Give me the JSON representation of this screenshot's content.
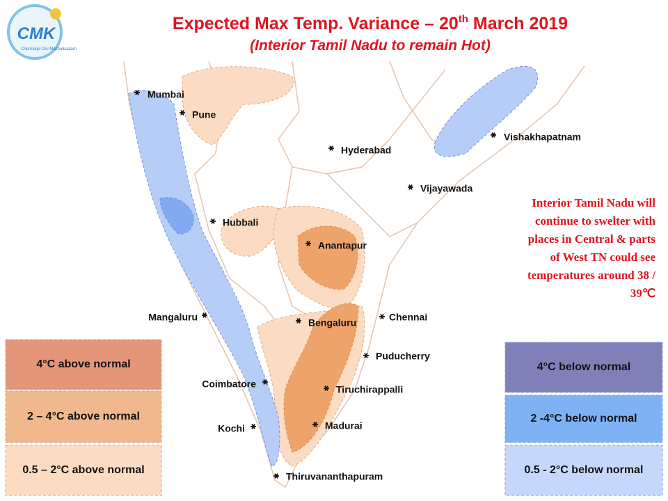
{
  "logo": {
    "title": "CMK",
    "tagline": "Chennaiyil Oru Mazhaikaalam"
  },
  "header": {
    "title": "Expected Max Temp. Variance – 20",
    "title_sup": "th",
    "title_end": " March 2019",
    "subtitle": "(Interior Tamil Nadu to remain Hot)"
  },
  "cities": [
    "Mumbai",
    "Pune",
    "Hyderabad",
    "Vishakhapatnam",
    "Vijayawada",
    "Hubbali",
    "Anantapur",
    "Mangaluru",
    "Bengaluru",
    "Chennai",
    "Puducherry",
    "Coimbatore",
    "Tiruchirappalli",
    "Kochi",
    "Madurai",
    "Thiruvananthapuram"
  ],
  "annotation": [
    "Interior Tamil Nadu will",
    "continue to swelter with",
    "places in Central & parts",
    "of West TN could see",
    "temperatures around 38 /",
    "39℃"
  ],
  "legend_above": [
    "4°C above normal",
    "2 – 4°C above normal",
    "0.5 – 2°C above normal"
  ],
  "legend_below": [
    "4°C  below normal",
    "2 -4°C below normal",
    "0.5 - 2°C below normal"
  ]
}
